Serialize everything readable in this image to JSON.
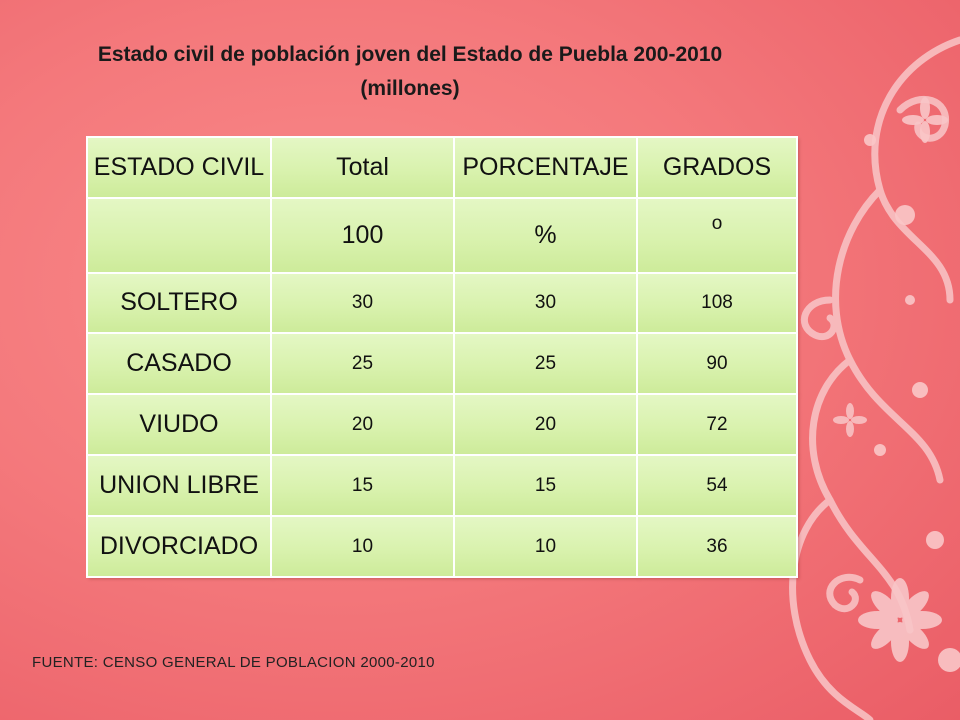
{
  "title": {
    "line1": "Estado civil de población joven del Estado de Puebla 200-2010",
    "line2": "(millones)"
  },
  "table": {
    "headers": [
      "ESTADO CIVIL",
      "Total",
      "PORCENTAJE",
      "GRADOS"
    ],
    "units": [
      "",
      "100",
      "%",
      "o"
    ],
    "rows": [
      {
        "label": "SOLTERO",
        "total": "30",
        "porcentaje": "30",
        "grados": "108"
      },
      {
        "label": "CASADO",
        "total": "25",
        "porcentaje": "25",
        "grados": "90"
      },
      {
        "label": "VIUDO",
        "total": "20",
        "porcentaje": "20",
        "grados": "72"
      },
      {
        "label": "UNION LIBRE",
        "total": "15",
        "porcentaje": "15",
        "grados": "54"
      },
      {
        "label": "DIVORCIADO",
        "total": "10",
        "porcentaje": "10",
        "grados": "36"
      }
    ]
  },
  "source": "FUENTE: CENSO GENERAL DE  POBLACION 2000-2010",
  "colors": {
    "background": "#f4797c",
    "cell": "#d9f2ae",
    "decor": "#f9c4c6"
  },
  "decoration_icon": "floral-swirl-icon"
}
